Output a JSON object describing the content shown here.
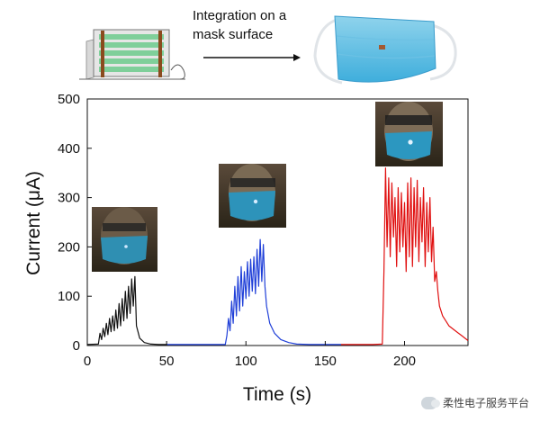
{
  "header": {
    "arrow_caption_line1": "Integration on a",
    "arrow_caption_line2": "mask surface"
  },
  "watermark": {
    "text": "柔性电子服务平台"
  },
  "chart_data": {
    "type": "line",
    "xlabel": "Time (s)",
    "ylabel": "Current (μA)",
    "xlim": [
      0,
      240
    ],
    "ylim": [
      0,
      500
    ],
    "xticks": [
      0,
      50,
      100,
      150,
      200
    ],
    "yticks": [
      0,
      100,
      200,
      300,
      400,
      500
    ],
    "grid": false,
    "legend": "none",
    "series": [
      {
        "color": "#111111",
        "x": [
          0,
          7,
          8,
          9,
          10,
          11,
          12,
          13,
          14,
          15,
          16,
          17,
          18,
          19,
          20,
          21,
          22,
          23,
          24,
          25,
          26,
          27,
          28,
          29,
          30,
          31,
          33,
          36,
          40,
          45,
          50
        ],
        "y": [
          2,
          3,
          25,
          12,
          35,
          18,
          45,
          22,
          55,
          28,
          60,
          30,
          72,
          35,
          85,
          40,
          95,
          50,
          110,
          55,
          120,
          65,
          135,
          80,
          140,
          40,
          15,
          6,
          3,
          2,
          2
        ]
      },
      {
        "color": "#1f3fd8",
        "x": [
          50,
          60,
          70,
          80,
          87,
          88,
          89,
          90,
          91,
          92,
          93,
          94,
          95,
          96,
          97,
          98,
          99,
          100,
          101,
          102,
          103,
          104,
          105,
          106,
          107,
          108,
          109,
          110,
          111,
          112,
          113,
          115,
          118,
          122,
          127,
          132,
          140,
          150,
          160
        ],
        "y": [
          2,
          2,
          2,
          2,
          2,
          20,
          55,
          30,
          90,
          45,
          120,
          60,
          140,
          70,
          160,
          80,
          150,
          95,
          170,
          100,
          175,
          110,
          180,
          105,
          195,
          120,
          215,
          130,
          205,
          120,
          80,
          45,
          25,
          12,
          6,
          3,
          2,
          2,
          2
        ]
      },
      {
        "color": "#e01010",
        "x": [
          160,
          170,
          180,
          186,
          187,
          188,
          189,
          190,
          191,
          192,
          193,
          194,
          195,
          196,
          197,
          198,
          199,
          200,
          201,
          202,
          203,
          204,
          205,
          206,
          207,
          208,
          209,
          210,
          211,
          212,
          213,
          214,
          215,
          216,
          217,
          218,
          219,
          220,
          221,
          222,
          224,
          228,
          232,
          236,
          240
        ],
        "y": [
          2,
          2,
          2,
          3,
          150,
          360,
          200,
          340,
          180,
          330,
          220,
          300,
          160,
          320,
          190,
          310,
          200,
          290,
          150,
          330,
          180,
          340,
          160,
          320,
          200,
          335,
          170,
          300,
          210,
          320,
          160,
          290,
          190,
          300,
          170,
          240,
          130,
          150,
          110,
          80,
          60,
          40,
          30,
          20,
          10
        ]
      }
    ]
  }
}
